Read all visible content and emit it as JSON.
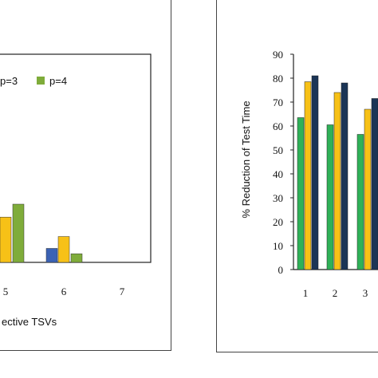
{
  "chart_data": [
    {
      "type": "bar",
      "categories": [
        "5",
        "6",
        "7"
      ],
      "series": [
        {
          "name": "p=3",
          "values": [
            21,
            12,
            0
          ]
        },
        {
          "name": "p=4",
          "values": [
            27,
            4,
            0
          ]
        }
      ],
      "extra_series": [
        {
          "values": [
            0,
            4.5,
            0
          ]
        }
      ],
      "xlabel": "ective TSVs",
      "legend_position": "top",
      "grid": false
    },
    {
      "type": "bar",
      "categories": [
        "1",
        "2",
        "3"
      ],
      "series": [
        {
          "values": [
            63.5,
            60.5,
            56.5
          ]
        },
        {
          "values": [
            78.5,
            74,
            67
          ]
        },
        {
          "values": [
            81,
            78,
            71.5
          ]
        }
      ],
      "ylabel": "% Reduction of Test Time",
      "ylim": [
        0,
        90
      ],
      "yticks": [
        "0",
        "10",
        "20",
        "30",
        "40",
        "50",
        "60",
        "70",
        "80",
        "90"
      ],
      "grid": false
    }
  ],
  "colors": {
    "blue": "#3b62b4",
    "green": "#2fb158",
    "yellow": "#f7c117",
    "olive": "#7fac3a",
    "navy": "#1b3556",
    "axis": "#222222"
  }
}
